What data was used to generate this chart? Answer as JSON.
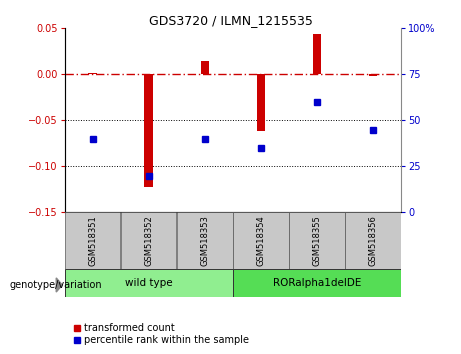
{
  "title": "GDS3720 / ILMN_1215535",
  "samples": [
    "GSM518351",
    "GSM518352",
    "GSM518353",
    "GSM518354",
    "GSM518355",
    "GSM518356"
  ],
  "transformed_count": [
    0.001,
    -0.122,
    0.015,
    -0.062,
    0.044,
    -0.002
  ],
  "percentile_rank": [
    40,
    20,
    40,
    35,
    60,
    45
  ],
  "groups": [
    {
      "label": "wild type",
      "samples": [
        0,
        1,
        2
      ],
      "color": "#90EE90"
    },
    {
      "label": "RORalpha1delDE",
      "samples": [
        3,
        4,
        5
      ],
      "color": "#55DD55"
    }
  ],
  "left_ylim": [
    -0.15,
    0.05
  ],
  "right_ylim": [
    0,
    100
  ],
  "left_yticks": [
    -0.15,
    -0.1,
    -0.05,
    0.0,
    0.05
  ],
  "right_yticks": [
    0,
    25,
    50,
    75,
    100
  ],
  "bar_color": "#CC0000",
  "dot_color": "#0000CC",
  "hline_color": "#CC0000",
  "hline_style": "--",
  "hline_value": 0.0,
  "dotted_lines": [
    -0.05,
    -0.1
  ],
  "bg_color": "#ffffff",
  "xlab_bg": "#C8C8C8",
  "legend_items": [
    "transformed count",
    "percentile rank within the sample"
  ],
  "genotype_label": "genotype/variation"
}
